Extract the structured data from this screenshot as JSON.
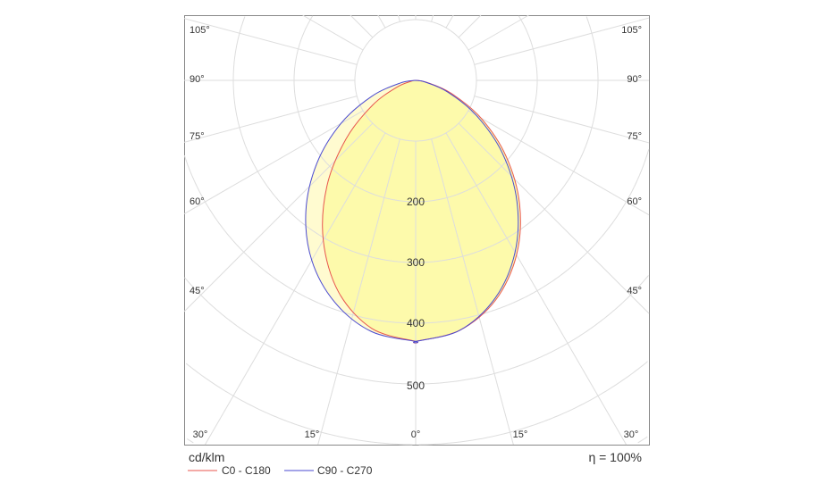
{
  "chart_data": {
    "type": "polar",
    "unit_label": "cd/klm",
    "efficiency_label": "η = 100%",
    "radial_ticks": [
      100,
      200,
      300,
      400,
      500,
      600,
      700
    ],
    "radial_tick_labels": [
      "200",
      "300",
      "400",
      "500"
    ],
    "angle_labels_left": [
      "105°",
      "90°",
      "75°",
      "60°",
      "45°"
    ],
    "angle_labels_bottom": [
      "30°",
      "15°",
      "0°",
      "15°",
      "30°"
    ],
    "angle_labels_right": [
      "105°",
      "90°",
      "75°",
      "60°",
      "45°"
    ],
    "grid": true,
    "legend_placement": "bottom-left",
    "gamma_deg": [
      0,
      10,
      20,
      30,
      40,
      50,
      60,
      70,
      80,
      90
    ],
    "series": [
      {
        "name": "C0 - C180",
        "color": "#e8554e",
        "left_C180": [
          430,
          415,
          371,
          304,
          227,
          149,
          82,
          33,
          6,
          0
        ],
        "right_C0": [
          430,
          418,
          385,
          332,
          266,
          194,
          124,
          62,
          18,
          0
        ]
      },
      {
        "name": "C90 - C270",
        "color": "#4a4ad0",
        "left_C90": [
          430,
          420,
          389,
          342,
          281,
          212,
          142,
          77,
          26,
          0
        ],
        "right_C270": [
          430,
          418,
          382,
          327,
          259,
          186,
          115,
          56,
          16,
          0
        ]
      }
    ],
    "fill_color": "#fdf9a6"
  }
}
